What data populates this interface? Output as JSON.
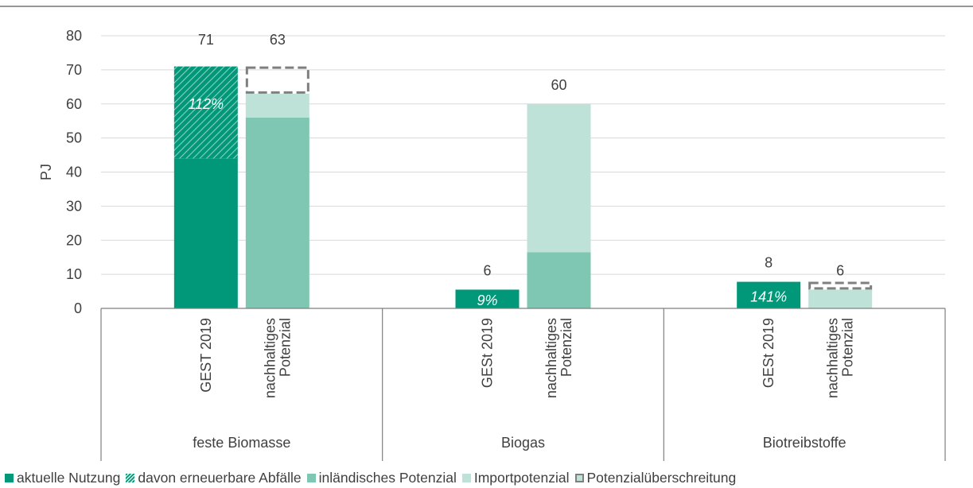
{
  "colors": {
    "aktuelle_nutzung": "#009878",
    "abfaelle": "#009878",
    "inlaendisch": "#7fc7b2",
    "import": "#bfe2d8",
    "ueberschreitung_border": "#7f7f7f",
    "text": "#404040",
    "grid": "#d9d9d9",
    "axis": "#7f7f7f"
  },
  "chart_data": {
    "type": "bar",
    "stacked": true,
    "ylabel": "PJ",
    "ylim": [
      0,
      80
    ],
    "yticks": [
      0,
      10,
      20,
      30,
      40,
      50,
      60,
      70,
      80
    ],
    "grid": true,
    "legend_position": "bottom",
    "groups": [
      {
        "name": "feste Biomasse",
        "bars": [
          {
            "label": "GEST 2019",
            "total_label": "71",
            "inner_label": "112%",
            "segments": [
              {
                "series": "aktuelle Nutzung",
                "value": 44
              },
              {
                "series": "davon erneuerbare Abfälle",
                "value": 27
              }
            ]
          },
          {
            "label": "nachhaltiges Potenzial",
            "total_label": "63",
            "segments": [
              {
                "series": "inländisches Potenzial",
                "value": 56
              },
              {
                "series": "Importpotenzial",
                "value": 7
              }
            ],
            "exceedance": {
              "from": 63,
              "to": 71
            }
          }
        ]
      },
      {
        "name": "Biogas",
        "bars": [
          {
            "label": "GESt 2019",
            "total_label": "6",
            "inner_label": "9%",
            "segments": [
              {
                "series": "aktuelle Nutzung",
                "value": 5.5
              }
            ]
          },
          {
            "label": "nachhaltiges Potenzial",
            "total_label": "60",
            "segments": [
              {
                "series": "inländisches Potenzial",
                "value": 16.5
              },
              {
                "series": "Importpotenzial",
                "value": 43.5
              }
            ]
          }
        ]
      },
      {
        "name": "Biotreibstoffe",
        "bars": [
          {
            "label": "GESt 2019",
            "total_label": "8",
            "inner_label": "141%",
            "segments": [
              {
                "series": "aktuelle Nutzung",
                "value": 7.8
              }
            ]
          },
          {
            "label": "nachhaltiges Potenzial",
            "total_label": "6",
            "segments": [
              {
                "series": "Importpotenzial",
                "value": 5.5
              }
            ],
            "exceedance": {
              "from": 5.5,
              "to": 7.8
            }
          }
        ]
      }
    ],
    "legend": [
      {
        "key": "aktuelle_nutzung",
        "label": "aktuelle Nutzung",
        "style": "solid"
      },
      {
        "key": "abfaelle",
        "label": "davon erneuerbare Abfälle",
        "style": "hatched"
      },
      {
        "key": "inlaendisch",
        "label": "inländisches Potenzial",
        "style": "solid"
      },
      {
        "key": "import",
        "label": "Importpotenzial",
        "style": "solid"
      },
      {
        "key": "ueberschreitung",
        "label": "Potenzialüberschreitung",
        "style": "dashed"
      }
    ]
  }
}
